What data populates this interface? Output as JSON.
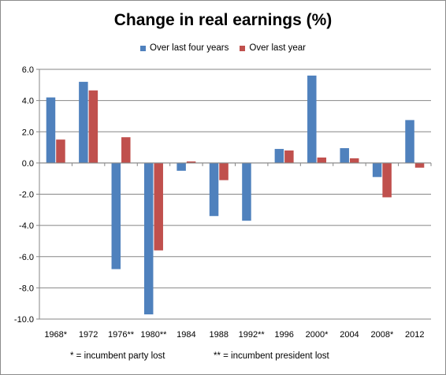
{
  "chart_data": {
    "type": "bar",
    "title": "Change in real earnings (%)",
    "xlabel": "",
    "ylabel": "",
    "ylim": [
      -10,
      6
    ],
    "ytick_step": 2,
    "grid": true,
    "legend_position": "top",
    "categories": [
      "1968*",
      "1972",
      "1976**",
      "1980**",
      "1984",
      "1988",
      "1992**",
      "1996",
      "2000*",
      "2004",
      "2008*",
      "2012"
    ],
    "series": [
      {
        "name": "Over last four years",
        "color": "#4f81bd",
        "values": [
          4.2,
          5.2,
          -6.8,
          -9.7,
          -0.5,
          -3.4,
          -3.7,
          0.9,
          5.6,
          0.95,
          -0.9,
          2.75
        ]
      },
      {
        "name": "Over last year",
        "color": "#c0504d",
        "values": [
          1.5,
          4.65,
          1.65,
          -5.6,
          0.1,
          -1.1,
          0.0,
          0.8,
          0.35,
          0.3,
          -2.2,
          -0.3
        ]
      }
    ],
    "ytick_labels": [
      "6.0",
      "4.0",
      "2.0",
      "0.0",
      "-2.0",
      "-4.0",
      "-6.0",
      "-8.0",
      "-10.0"
    ],
    "footnotes": [
      "* = incumbent party lost",
      "** = incumbent president lost"
    ]
  }
}
